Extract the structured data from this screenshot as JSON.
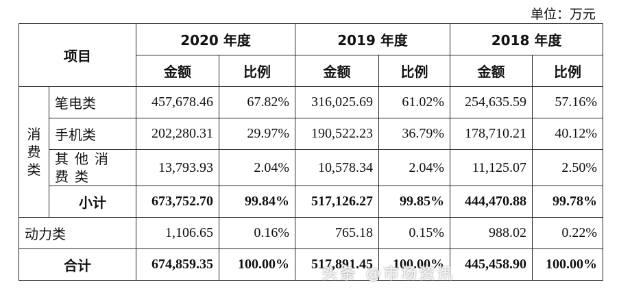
{
  "unit_label": "单位：万元",
  "header": {
    "item": "项目",
    "years": [
      "2020 年度",
      "2019 年度",
      "2018 年度"
    ],
    "amount": "金额",
    "ratio": "比例"
  },
  "group_label": [
    "消",
    "费",
    "类"
  ],
  "rows": [
    {
      "label": "笔电类",
      "values": [
        "457,678.46",
        "67.82%",
        "316,025.69",
        "61.02%",
        "254,635.59",
        "57.16%"
      ]
    },
    {
      "label": "手机类",
      "values": [
        "202,280.31",
        "29.97%",
        "190,522.23",
        "36.79%",
        "178,710.21",
        "40.12%"
      ]
    },
    {
      "label": "其他消费类",
      "values": [
        "13,793.93",
        "2.04%",
        "10,578.34",
        "2.04%",
        "11,125.07",
        "2.50%"
      ]
    },
    {
      "label": "小计",
      "values": [
        "673,752.70",
        "99.84%",
        "517,126.27",
        "99.85%",
        "444,470.88",
        "99.78%"
      ]
    },
    {
      "label": "动力类",
      "values": [
        "1,106.65",
        "0.16%",
        "765.18",
        "0.15%",
        "988.02",
        "0.22%"
      ]
    },
    {
      "label": "合计",
      "values": [
        "674,859.35",
        "100.00%",
        "517,891.45",
        "100.00%",
        "445,458.90",
        "100.00%"
      ]
    }
  ],
  "watermark": "头条 @市场资讯"
}
